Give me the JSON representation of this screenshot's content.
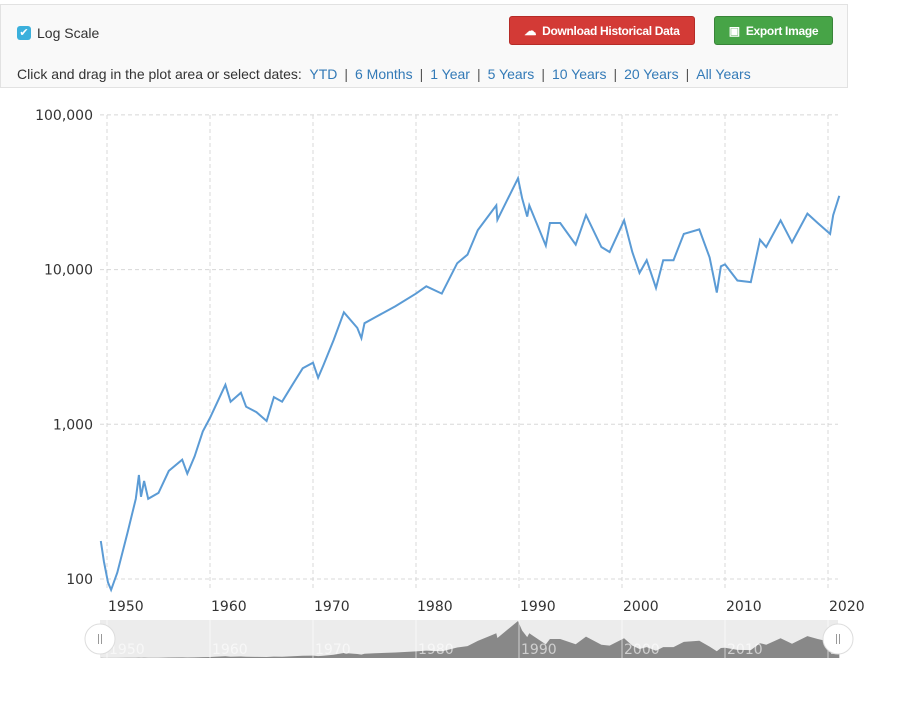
{
  "controls": {
    "log_scale_label": "Log Scale",
    "log_scale_checked": true,
    "download_label": "Download Historical Data",
    "download_icon": "cloud-download-icon",
    "export_label": "Export Image",
    "export_icon": "image-icon",
    "range_prompt": "Click and drag in the plot area or select dates:",
    "ranges": [
      "YTD",
      "6 Months",
      "1 Year",
      "5 Years",
      "10 Years",
      "20 Years",
      "All Years"
    ]
  },
  "colors": {
    "line": "#5b9bd5",
    "navigator": "#888888",
    "download": "#d33a36",
    "export": "#47a447"
  },
  "chart_data": {
    "type": "line",
    "title": "",
    "xlabel": "",
    "ylabel": "",
    "yscale": "log",
    "ylim": [
      100,
      100000
    ],
    "xlim": [
      1950,
      2020
    ],
    "yticks": [
      "100",
      "1,000",
      "10,000",
      "100,000"
    ],
    "ytick_values": [
      100,
      1000,
      10000,
      100000
    ],
    "xticks": [
      "1950",
      "1960",
      "1970",
      "1980",
      "1990",
      "2000",
      "2010",
      "2020"
    ],
    "grid": true,
    "series": [
      {
        "points": [
          [
            1949.4,
            176
          ],
          [
            1949.7,
            130
          ],
          [
            1950.1,
            95
          ],
          [
            1950.4,
            85
          ],
          [
            1951,
            110
          ],
          [
            1952,
            200
          ],
          [
            1952.8,
            330
          ],
          [
            1953.1,
            470
          ],
          [
            1953.3,
            340
          ],
          [
            1953.6,
            430
          ],
          [
            1954,
            330
          ],
          [
            1955,
            360
          ],
          [
            1956,
            500
          ],
          [
            1957.3,
            590
          ],
          [
            1957.8,
            480
          ],
          [
            1958.5,
            620
          ],
          [
            1959.3,
            900
          ],
          [
            1960,
            1100
          ],
          [
            1961.5,
            1800
          ],
          [
            1962,
            1400
          ],
          [
            1963,
            1600
          ],
          [
            1963.5,
            1300
          ],
          [
            1964.5,
            1200
          ],
          [
            1965.5,
            1050
          ],
          [
            1966.2,
            1500
          ],
          [
            1967,
            1400
          ],
          [
            1968,
            1800
          ],
          [
            1969,
            2300
          ],
          [
            1970,
            2500
          ],
          [
            1970.5,
            2000
          ],
          [
            1971,
            2400
          ],
          [
            1972,
            3500
          ],
          [
            1973,
            5300
          ],
          [
            1974.3,
            4200
          ],
          [
            1974.7,
            3600
          ],
          [
            1975,
            4500
          ],
          [
            1976,
            4900
          ],
          [
            1978,
            5800
          ],
          [
            1980,
            7000
          ],
          [
            1981,
            7800
          ],
          [
            1982.5,
            7000
          ],
          [
            1984,
            11000
          ],
          [
            1985,
            12500
          ],
          [
            1986,
            18000
          ],
          [
            1987.8,
            26000
          ],
          [
            1987.9,
            21000
          ],
          [
            1989.9,
            38900
          ],
          [
            1990.3,
            29000
          ],
          [
            1990.8,
            22000
          ],
          [
            1991,
            26000
          ],
          [
            1992.6,
            14300
          ],
          [
            1993,
            20000
          ],
          [
            1994,
            20000
          ],
          [
            1995.5,
            14500
          ],
          [
            1996.5,
            22500
          ],
          [
            1998,
            14000
          ],
          [
            1998.8,
            13000
          ],
          [
            2000.2,
            20800
          ],
          [
            2001,
            13000
          ],
          [
            2001.7,
            9500
          ],
          [
            2002.4,
            11500
          ],
          [
            2003.3,
            7600
          ],
          [
            2004,
            11500
          ],
          [
            2005,
            11500
          ],
          [
            2006,
            17000
          ],
          [
            2007.5,
            18200
          ],
          [
            2008.5,
            12000
          ],
          [
            2009.2,
            7100
          ],
          [
            2009.6,
            10500
          ],
          [
            2010,
            10800
          ],
          [
            2011.2,
            8500
          ],
          [
            2012.5,
            8300
          ],
          [
            2013.4,
            15600
          ],
          [
            2014,
            14000
          ],
          [
            2015.4,
            20800
          ],
          [
            2016.5,
            15000
          ],
          [
            2018,
            23000
          ],
          [
            2019,
            20000
          ],
          [
            2020.2,
            17000
          ],
          [
            2020.5,
            22500
          ],
          [
            2021.1,
            30000
          ]
        ]
      }
    ]
  }
}
